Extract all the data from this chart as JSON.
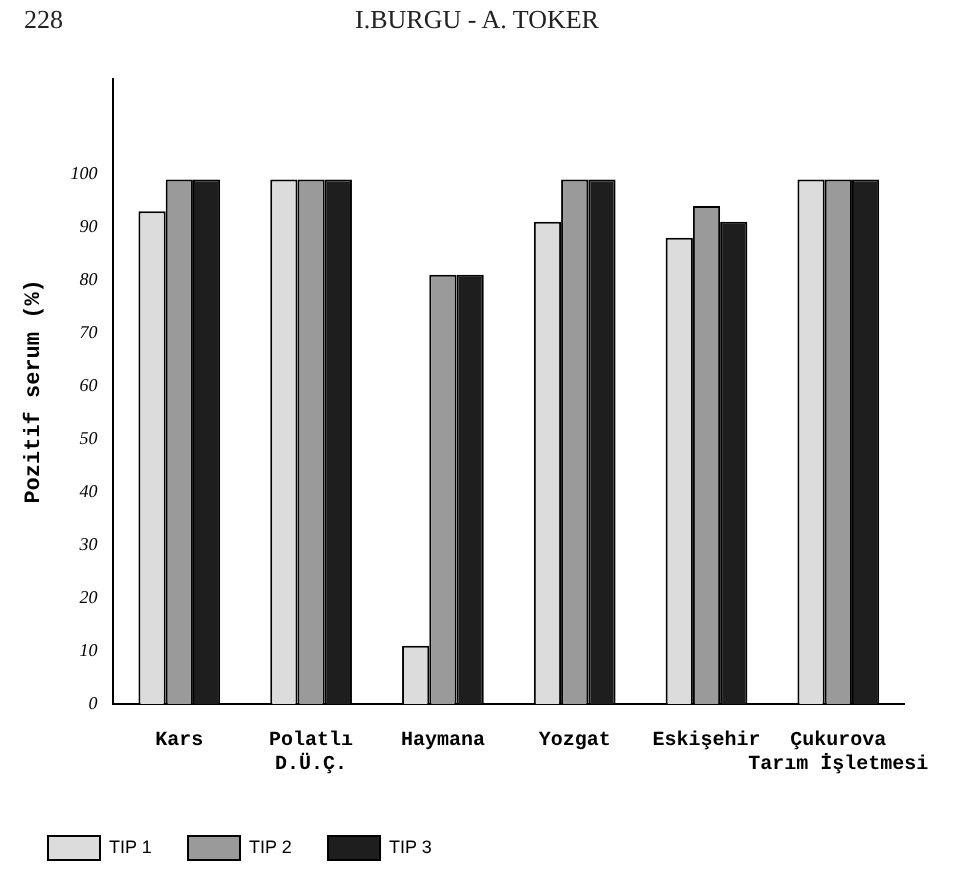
{
  "chart_data": {
    "type": "bar",
    "ylabel": "Pozitif serum (%)",
    "categories": [
      "Kars",
      "Polatlı\nD.Ü.Ç.",
      "Haymana",
      "Yozgat",
      "Eskişehir",
      "Çukurova\nTarım İşletmesi"
    ],
    "series": [
      {
        "name": "TIP 1",
        "color": "#dcdcdc",
        "values": [
          93,
          99,
          11,
          91,
          88,
          99
        ]
      },
      {
        "name": "TIP 2",
        "color": "#9a9a9a",
        "values": [
          99,
          99,
          81,
          99,
          94,
          99
        ]
      },
      {
        "name": "TIP 3",
        "color": "#1e1e1e",
        "values": [
          99,
          99,
          81,
          99,
          91,
          99
        ]
      }
    ],
    "ylim": [
      0,
      118
    ],
    "yticks": [
      0,
      10,
      20,
      30,
      40,
      50,
      60,
      70,
      80,
      90,
      100
    ],
    "grid": false,
    "legend": "bottom left",
    "annotations": [
      "228",
      "I.BURGU - A. TOKER"
    ]
  }
}
